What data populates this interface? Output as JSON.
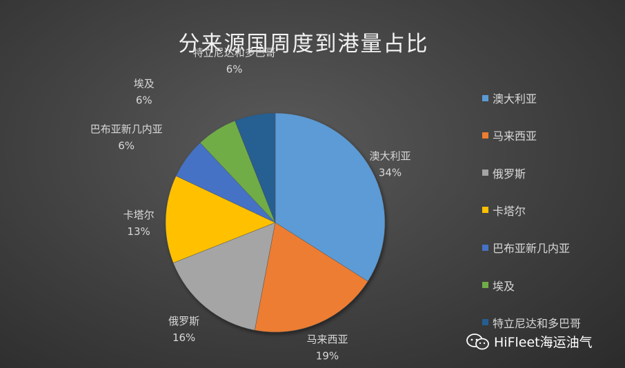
{
  "chart_data": {
    "type": "pie",
    "title": "分来源国周度到港量占比",
    "categories": [
      "澳大利亚",
      "马来西亚",
      "俄罗斯",
      "卡塔尔",
      "巴布亚新几内亚",
      "埃及",
      "特立尼达和多巴哥"
    ],
    "values": [
      34,
      19,
      16,
      13,
      6,
      6,
      6
    ],
    "value_labels": [
      "34%",
      "19%",
      "16%",
      "13%",
      "6%",
      "6%",
      "6%"
    ],
    "colors": [
      "#5b9bd5",
      "#ed7d31",
      "#a5a5a5",
      "#ffc000",
      "#4472c4",
      "#70ad47",
      "#255e91"
    ],
    "legend_position": "right",
    "start_angle": "12 o'clock, clockwise"
  },
  "watermark": {
    "text": "HiFleet海运油气",
    "icon": "wechat-icon"
  }
}
